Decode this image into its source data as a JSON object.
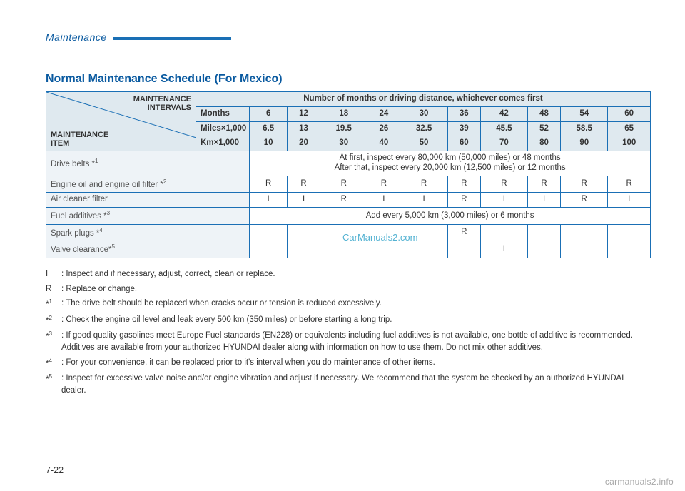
{
  "header": {
    "section": "Maintenance"
  },
  "title": "Normal Maintenance Schedule (For Mexico)",
  "corner": {
    "top": "MAINTENANCE\nINTERVALS",
    "bottom": "MAINTENANCE\nITEM"
  },
  "span_header": "Number of months or driving distance, whichever comes first",
  "unit_rows": [
    {
      "label": "Months",
      "values": [
        "6",
        "12",
        "18",
        "24",
        "30",
        "36",
        "42",
        "48",
        "54",
        "60"
      ]
    },
    {
      "label": "Miles×1,000",
      "values": [
        "6.5",
        "13",
        "19.5",
        "26",
        "32.5",
        "39",
        "45.5",
        "52",
        "58.5",
        "65"
      ]
    },
    {
      "label": "Km×1,000",
      "values": [
        "10",
        "20",
        "30",
        "40",
        "50",
        "60",
        "70",
        "80",
        "90",
        "100"
      ]
    }
  ],
  "item_rows": [
    {
      "label": "Drive belts *",
      "sup": "1",
      "span_text": "At first, inspect every 80,000 km (50,000 miles) or 48 months\nAfter that, inspect every 20,000 km (12,500 miles) or 12 months"
    },
    {
      "label": "Engine oil and engine oil filter *",
      "sup": "2",
      "cells": [
        "R",
        "R",
        "R",
        "R",
        "R",
        "R",
        "R",
        "R",
        "R",
        "R"
      ]
    },
    {
      "label": "Air cleaner filter",
      "cells": [
        "I",
        "I",
        "R",
        "I",
        "I",
        "R",
        "I",
        "I",
        "R",
        "I"
      ]
    },
    {
      "label": "Fuel additives *",
      "sup": "3",
      "span_text": "Add every 5,000 km (3,000 miles) or 6 months"
    },
    {
      "label": "Spark plugs *",
      "sup": "4",
      "cells": [
        "",
        "",
        "",
        "",
        "",
        "R",
        "",
        "",
        "",
        ""
      ]
    },
    {
      "label": "Valve clearance*",
      "sup": "5",
      "cells": [
        "",
        "",
        "",
        "",
        "",
        "",
        "I",
        "",
        "",
        ""
      ]
    }
  ],
  "footnotes": [
    {
      "key": "I",
      "text": ": Inspect and if necessary, adjust, correct, clean or replace."
    },
    {
      "key": "R",
      "text": ": Replace or change."
    },
    {
      "key": "*",
      "sup": "1",
      "text": ": The drive belt should be replaced when cracks occur or tension is reduced excessively."
    },
    {
      "key": "*",
      "sup": "2",
      "text": ": Check the engine oil level and leak every 500 km (350 miles) or before starting a long trip."
    },
    {
      "key": "*",
      "sup": "3",
      "text": ": If good quality gasolines meet Europe Fuel standards (EN228) or equivalents including fuel additives is not available, one bottle of additive is recommended. Additives are available from your authorized HYUNDAI dealer along with information on how to use them. Do not mix other additives."
    },
    {
      "key": "*",
      "sup": "4",
      "text": ": For your convenience, it can be replaced prior to it's interval when you do maintenance of other items."
    },
    {
      "key": "*",
      "sup": "5",
      "text": ": Inspect for excessive valve noise and/or engine vibration and adjust if necessary. We recommend that the system be checked by an authorized HYUNDAI dealer."
    }
  ],
  "page_number": "7-22",
  "watermark_center": "CarManuals2.com",
  "watermark_bottom": "carmanuals2.info",
  "colors": {
    "brand_blue": "#1a6fb5",
    "title_blue": "#0a5aa0",
    "shade": "#dfe9ef",
    "rowlabel": "#eef3f7",
    "wm_center": "#2aa0c8",
    "wm_bottom": "#a8a8a8"
  }
}
